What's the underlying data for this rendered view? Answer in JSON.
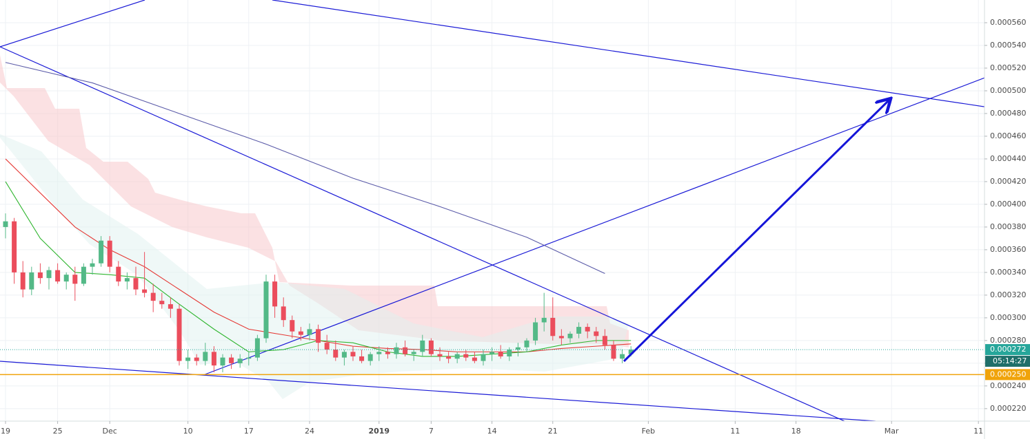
{
  "chart_data": {
    "type": "candlestick",
    "xlim": [
      -0.635,
      112.7
    ],
    "ylim": [
      0.000209,
      0.00058
    ],
    "xticks": [
      {
        "value": 0,
        "label": "19"
      },
      {
        "value": 6,
        "label": "25"
      },
      {
        "value": 12,
        "label": "Dec"
      },
      {
        "value": 21,
        "label": "10"
      },
      {
        "value": 28,
        "label": "17"
      },
      {
        "value": 35,
        "label": "24"
      },
      {
        "value": 43,
        "label": "2019"
      },
      {
        "value": 49,
        "label": "7"
      },
      {
        "value": 56,
        "label": "14"
      },
      {
        "value": 63,
        "label": "21"
      },
      {
        "value": 74,
        "label": "Feb"
      },
      {
        "value": 84,
        "label": "11"
      },
      {
        "value": 91,
        "label": "18"
      },
      {
        "value": 102,
        "label": "Mar"
      },
      {
        "value": 112,
        "label": "11"
      }
    ],
    "yticks": [
      {
        "value": 0.00022,
        "label": "0.000220"
      },
      {
        "value": 0.00024,
        "label": "0.000240"
      },
      {
        "value": 0.00026,
        "label": "0.000260"
      },
      {
        "value": 0.00028,
        "label": "0.000280"
      },
      {
        "value": 0.0003,
        "label": "0.000300"
      },
      {
        "value": 0.00032,
        "label": "0.000320"
      },
      {
        "value": 0.00034,
        "label": "0.000340"
      },
      {
        "value": 0.00036,
        "label": "0.000360"
      },
      {
        "value": 0.00038,
        "label": "0.000380"
      },
      {
        "value": 0.0004,
        "label": "0.000400"
      },
      {
        "value": 0.00042,
        "label": "0.000420"
      },
      {
        "value": 0.00044,
        "label": "0.000440"
      },
      {
        "value": 0.00046,
        "label": "0.000460"
      },
      {
        "value": 0.00048,
        "label": "0.000480"
      },
      {
        "value": 0.0005,
        "label": "0.000500"
      },
      {
        "value": 0.00052,
        "label": "0.000520"
      },
      {
        "value": 0.00054,
        "label": "0.000540"
      },
      {
        "value": 0.00056,
        "label": "0.000560"
      }
    ],
    "grid": true,
    "candles": {
      "up_color": "#53b987",
      "down_color": "#eb4d5c",
      "x": [
        0,
        1,
        2,
        3,
        4,
        5,
        6,
        7,
        8,
        9,
        10,
        11,
        12,
        13,
        14,
        15,
        16,
        17,
        18,
        19,
        20,
        21,
        22,
        23,
        24,
        25,
        26,
        27,
        28,
        29,
        30,
        31,
        32,
        33,
        34,
        35,
        36,
        37,
        38,
        39,
        40,
        41,
        42,
        43,
        44,
        45,
        46,
        47,
        48,
        49,
        50,
        51,
        52,
        53,
        54,
        55,
        56,
        57,
        58,
        59,
        60,
        61,
        62,
        63,
        64,
        65,
        66,
        67,
        68,
        69,
        70,
        71,
        72
      ],
      "open": [
        0.00038,
        0.000385,
        0.00034,
        0.000325,
        0.00034,
        0.000335,
        0.000342,
        0.000332,
        0.000338,
        0.00033,
        0.000345,
        0.000348,
        0.000368,
        0.000345,
        0.000332,
        0.000335,
        0.000325,
        0.000322,
        0.000315,
        0.000312,
        0.000308,
        0.000262,
        0.000265,
        0.000262,
        0.00027,
        0.000258,
        0.000265,
        0.00026,
        0.000264,
        0.000265,
        0.000282,
        0.000332,
        0.00031,
        0.000298,
        0.000288,
        0.000285,
        0.00029,
        0.000278,
        0.000272,
        0.000265,
        0.00027,
        0.000266,
        0.000262,
        0.000268,
        0.00027,
        0.000268,
        0.000274,
        0.000268,
        0.00027,
        0.00028,
        0.000268,
        0.000266,
        0.000264,
        0.000268,
        0.000265,
        0.000262,
        0.000268,
        0.00027,
        0.000266,
        0.000272,
        0.000274,
        0.00028,
        0.000296,
        0.0003,
        0.000284,
        0.000282,
        0.000286,
        0.000292,
        0.000288,
        0.000284,
        0.000276,
        0.000264,
        0.000268
      ],
      "high": [
        0.000392,
        0.000388,
        0.00035,
        0.000345,
        0.000348,
        0.000345,
        0.000348,
        0.00034,
        0.000345,
        0.000348,
        0.000352,
        0.000372,
        0.000372,
        0.00035,
        0.00034,
        0.000345,
        0.000358,
        0.00033,
        0.000322,
        0.000318,
        0.000312,
        0.000272,
        0.000268,
        0.000278,
        0.000275,
        0.000268,
        0.000268,
        0.000268,
        0.00027,
        0.000285,
        0.000338,
        0.000338,
        0.000318,
        0.000302,
        0.000292,
        0.000295,
        0.000294,
        0.000285,
        0.00028,
        0.000272,
        0.000275,
        0.000272,
        0.00027,
        0.000275,
        0.000274,
        0.000278,
        0.00028,
        0.000272,
        0.000285,
        0.000282,
        0.000274,
        0.00027,
        0.00027,
        0.000272,
        0.00027,
        0.000272,
        0.000274,
        0.000276,
        0.000274,
        0.000278,
        0.000282,
        0.0003,
        0.000322,
        0.000318,
        0.00029,
        0.000288,
        0.000296,
        0.000295,
        0.000292,
        0.00029,
        0.00028,
        0.000272,
        0.000275
      ],
      "low": [
        0.00037,
        0.00033,
        0.000318,
        0.00032,
        0.00033,
        0.000325,
        0.00033,
        0.000325,
        0.000315,
        0.000328,
        0.000338,
        0.000345,
        0.00034,
        0.000328,
        0.000325,
        0.00032,
        0.000318,
        0.000305,
        0.000308,
        0.0003,
        0.000258,
        0.000255,
        0.000258,
        0.000258,
        0.000252,
        0.000252,
        0.000255,
        0.000256,
        0.000258,
        0.000262,
        0.000278,
        0.0003,
        0.000292,
        0.000282,
        0.00028,
        0.00028,
        0.00027,
        0.000268,
        0.000262,
        0.000258,
        0.000262,
        0.00026,
        0.000258,
        0.000262,
        0.000264,
        0.000264,
        0.000266,
        0.000262,
        0.000266,
        0.000266,
        0.000262,
        0.00026,
        0.00026,
        0.000262,
        0.00026,
        0.000258,
        0.000262,
        0.000264,
        0.000262,
        0.000266,
        0.00027,
        0.000276,
        0.000288,
        0.00028,
        0.000276,
        0.000278,
        0.000282,
        0.000282,
        0.000278,
        0.000272,
        0.000262,
        0.00026,
        0.000266
      ],
      "close": [
        0.000385,
        0.00034,
        0.000325,
        0.00034,
        0.000335,
        0.000342,
        0.000332,
        0.000338,
        0.00033,
        0.000345,
        0.000348,
        0.000368,
        0.000345,
        0.000332,
        0.000335,
        0.000325,
        0.000322,
        0.000315,
        0.000312,
        0.000308,
        0.000262,
        0.000265,
        0.000262,
        0.00027,
        0.000258,
        0.000265,
        0.00026,
        0.000264,
        0.000265,
        0.000282,
        0.000332,
        0.00031,
        0.000298,
        0.000288,
        0.000285,
        0.00029,
        0.000278,
        0.000272,
        0.000265,
        0.00027,
        0.000266,
        0.000262,
        0.000268,
        0.00027,
        0.000268,
        0.000274,
        0.000268,
        0.00027,
        0.00028,
        0.000268,
        0.000266,
        0.000264,
        0.000268,
        0.000265,
        0.000262,
        0.000268,
        0.00027,
        0.000266,
        0.000272,
        0.000274,
        0.00028,
        0.000296,
        0.0003,
        0.000284,
        0.000282,
        0.000286,
        0.000292,
        0.000288,
        0.000284,
        0.000276,
        0.000264,
        0.000268,
        0.000272
      ]
    },
    "lines": [
      {
        "color": "#e53935",
        "x": [
          0,
          4,
          8,
          12,
          16,
          20,
          24,
          28,
          32,
          36,
          40,
          44,
          48,
          52,
          56,
          60,
          64,
          68,
          72
        ],
        "values": [
          0.00044,
          0.00041,
          0.00038,
          0.00036,
          0.000345,
          0.000325,
          0.000305,
          0.00029,
          0.000285,
          0.00028,
          0.000275,
          0.000273,
          0.000272,
          0.00027,
          0.00027,
          0.00027,
          0.000273,
          0.000275,
          0.000277
        ]
      },
      {
        "color": "#2fb52f",
        "x": [
          0,
          4,
          8,
          12,
          16,
          20,
          24,
          28,
          32,
          36,
          40,
          44,
          48,
          52,
          56,
          60,
          64,
          68,
          72
        ],
        "values": [
          0.00042,
          0.00037,
          0.00034,
          0.000338,
          0.000335,
          0.000312,
          0.00029,
          0.00027,
          0.000272,
          0.00028,
          0.000278,
          0.00027,
          0.000266,
          0.000266,
          0.000268,
          0.00027,
          0.000276,
          0.00028,
          0.00028
        ]
      },
      {
        "color": "#5a5aa8",
        "x": [
          0,
          10,
          20,
          30,
          40,
          50,
          60,
          69
        ],
        "values": [
          0.000525,
          0.000507,
          0.00048,
          0.000453,
          0.000423,
          0.000398,
          0.000371,
          0.000339
        ]
      }
    ],
    "last_price": {
      "value": 0.000272,
      "label": "0.000272",
      "color": "#26a69a"
    },
    "countdown": "05:14:27",
    "support": {
      "value": 0.00025,
      "label": "0.000250",
      "color": "#f0a30a"
    }
  }
}
